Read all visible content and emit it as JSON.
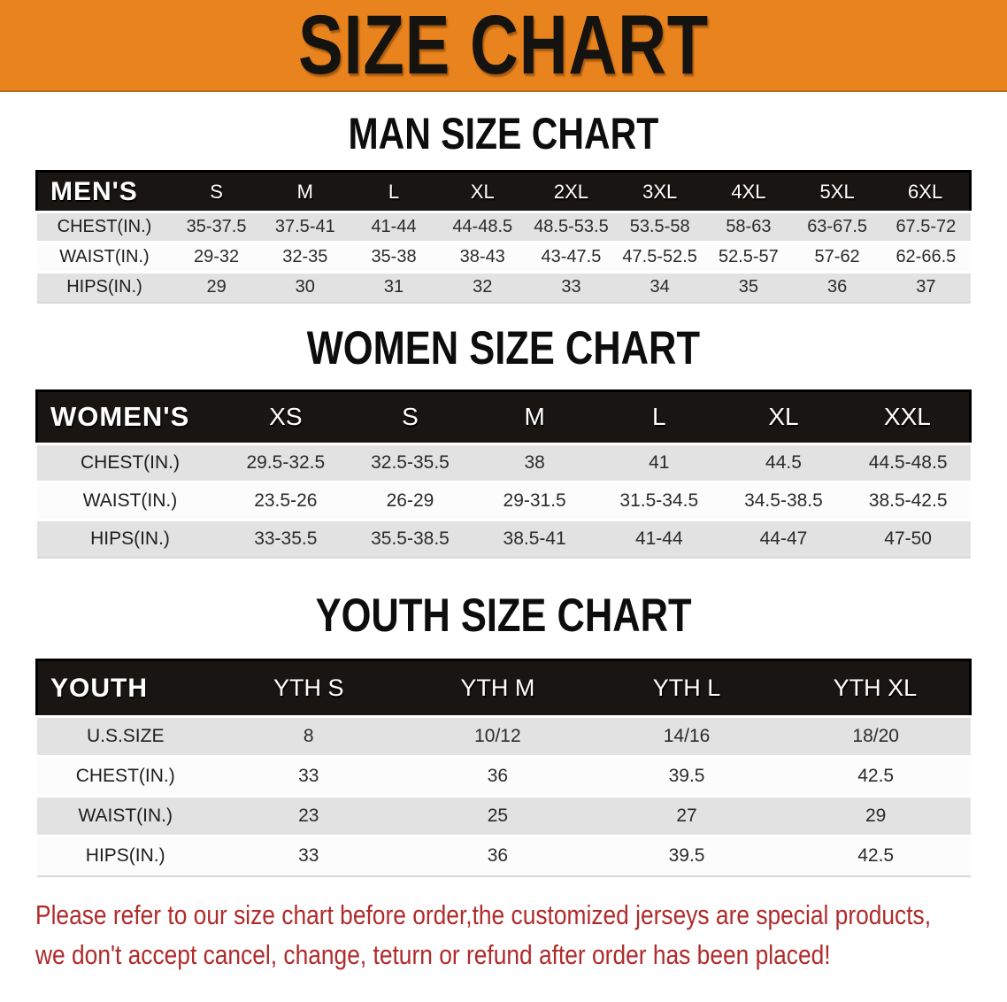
{
  "banner": {
    "title": "SIZE CHART"
  },
  "colors": {
    "banner_bg": "#E9831E",
    "header_bar_bg": "#181512",
    "shaded_row_bg": "#E2E2E2",
    "disclaimer_color": "#B02B2B"
  },
  "sections": [
    {
      "heading": "MAN SIZE CHART",
      "table": {
        "label": "MEN'S",
        "columns": [
          "S",
          "M",
          "L",
          "XL",
          "2XL",
          "3XL",
          "4XL",
          "5XL",
          "6XL"
        ],
        "rows": [
          {
            "label": "CHEST(IN.)",
            "values": [
              "35-37.5",
              "37.5-41",
              "41-44",
              "44-48.5",
              "48.5-53.5",
              "53.5-58",
              "58-63",
              "63-67.5",
              "67.5-72"
            ]
          },
          {
            "label": "WAIST(IN.)",
            "values": [
              "29-32",
              "32-35",
              "35-38",
              "38-43",
              "43-47.5",
              "47.5-52.5",
              "52.5-57",
              "57-62",
              "62-66.5"
            ]
          },
          {
            "label": "HIPS(IN.)",
            "values": [
              "29",
              "30",
              "31",
              "32",
              "33",
              "34",
              "35",
              "36",
              "37"
            ]
          }
        ]
      }
    },
    {
      "heading": "WOMEN SIZE CHART",
      "table": {
        "label": "WOMEN'S",
        "columns": [
          "XS",
          "S",
          "M",
          "L",
          "XL",
          "XXL"
        ],
        "rows": [
          {
            "label": "CHEST(IN.)",
            "values": [
              "29.5-32.5",
              "32.5-35.5",
              "38",
              "41",
              "44.5",
              "44.5-48.5"
            ]
          },
          {
            "label": "WAIST(IN.)",
            "values": [
              "23.5-26",
              "26-29",
              "29-31.5",
              "31.5-34.5",
              "34.5-38.5",
              "38.5-42.5"
            ]
          },
          {
            "label": "HIPS(IN.)",
            "values": [
              "33-35.5",
              "35.5-38.5",
              "38.5-41",
              "41-44",
              "44-47",
              "47-50"
            ]
          }
        ]
      }
    },
    {
      "heading": "YOUTH SIZE CHART",
      "table": {
        "label": "YOUTH",
        "columns": [
          "YTH S",
          "YTH M",
          "YTH L",
          "YTH XL"
        ],
        "rows": [
          {
            "label": "U.S.SIZE",
            "values": [
              "8",
              "10/12",
              "14/16",
              "18/20"
            ]
          },
          {
            "label": "CHEST(IN.)",
            "values": [
              "33",
              "36",
              "39.5",
              "42.5"
            ]
          },
          {
            "label": "WAIST(IN.)",
            "values": [
              "23",
              "25",
              "27",
              "29"
            ]
          },
          {
            "label": "HIPS(IN.)",
            "values": [
              "33",
              "36",
              "39.5",
              "42.5"
            ]
          }
        ]
      }
    }
  ],
  "disclaimer": {
    "line1": "Please refer to our size chart before order,the customized jerseys are special products,",
    "line2": "we don't accept cancel, change, teturn or refund after order has been placed!"
  }
}
